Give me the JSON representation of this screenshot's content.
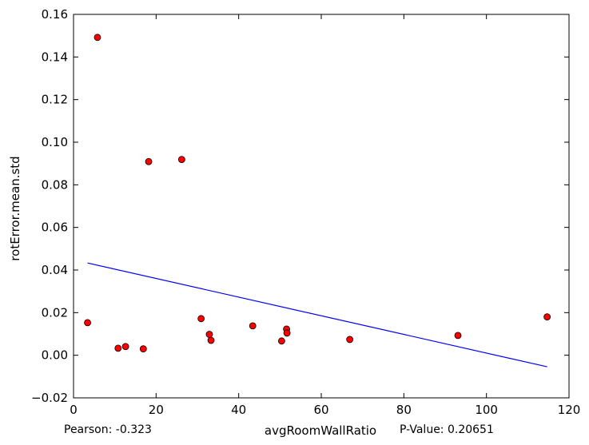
{
  "chart_data": {
    "type": "scatter",
    "title": "",
    "xlabel": "avgRoomWallRatio",
    "ylabel": "rotError.mean.std",
    "xlim": [
      0,
      120
    ],
    "ylim": [
      -0.02,
      0.16
    ],
    "x_ticks": [
      0,
      20,
      40,
      60,
      80,
      100,
      120
    ],
    "y_ticks": [
      -0.02,
      0.0,
      0.02,
      0.04,
      0.06,
      0.08,
      0.1,
      0.12,
      0.14,
      0.16
    ],
    "x_tick_labels": [
      "0",
      "20",
      "40",
      "60",
      "80",
      "100",
      "120"
    ],
    "y_tick_labels": [
      "−0.02",
      "0.00",
      "0.02",
      "0.04",
      "0.06",
      "0.08",
      "0.10",
      "0.12",
      "0.14",
      "0.16"
    ],
    "grid": false,
    "point_color": "#ff0000",
    "line_color": "#0000ff",
    "points": [
      {
        "x": 3.4,
        "y": 0.0153
      },
      {
        "x": 5.8,
        "y": 0.1492
      },
      {
        "x": 10.8,
        "y": 0.0033
      },
      {
        "x": 12.6,
        "y": 0.0041
      },
      {
        "x": 16.9,
        "y": 0.003
      },
      {
        "x": 18.2,
        "y": 0.0909
      },
      {
        "x": 26.2,
        "y": 0.0919
      },
      {
        "x": 30.9,
        "y": 0.0172
      },
      {
        "x": 32.9,
        "y": 0.0098
      },
      {
        "x": 33.3,
        "y": 0.007
      },
      {
        "x": 43.4,
        "y": 0.0138
      },
      {
        "x": 50.4,
        "y": 0.0067
      },
      {
        "x": 51.6,
        "y": 0.0123
      },
      {
        "x": 51.7,
        "y": 0.0104
      },
      {
        "x": 66.9,
        "y": 0.0074
      },
      {
        "x": 93.1,
        "y": 0.0093
      },
      {
        "x": 114.7,
        "y": 0.018
      }
    ],
    "regression_line": {
      "x": [
        3.4,
        114.7
      ],
      "y": [
        0.0433,
        -0.0054
      ]
    },
    "pearson_text": "Pearson: -0.323",
    "pvalue_text": "P-Value: 0.20651"
  }
}
